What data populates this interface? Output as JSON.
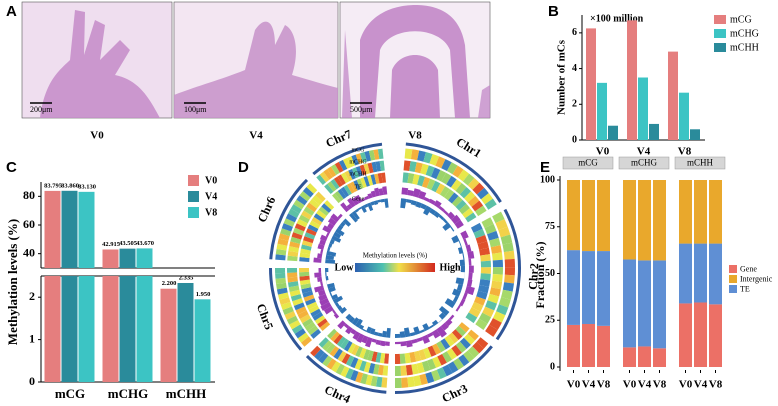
{
  "panel_labels": [
    "A",
    "B",
    "C",
    "D",
    "E"
  ],
  "micrographs": [
    {
      "label": "V0",
      "scale": "200μm"
    },
    {
      "label": "V4",
      "scale": "100μm"
    },
    {
      "label": "V8",
      "scale": "500μm"
    }
  ],
  "chart_data": [
    {
      "type": "bar",
      "annotation": "×100 million",
      "y_label": "Number of mCs",
      "categories": [
        "V0",
        "V4",
        "V8"
      ],
      "series": [
        {
          "name": "mCG",
          "color": "#e57e7e",
          "values": [
            6.25,
            6.7,
            4.95
          ]
        },
        {
          "name": "mCHG",
          "color": "#3cc4c4",
          "values": [
            3.2,
            3.5,
            2.65
          ]
        },
        {
          "name": "mCHH",
          "color": "#2a8b9b",
          "values": [
            0.8,
            0.9,
            0.6
          ]
        }
      ],
      "ylim": [
        0,
        7
      ],
      "yticks": [
        0,
        2,
        4,
        6
      ]
    },
    {
      "type": "broken_bar",
      "y_label": "Methylation levels (%)",
      "categories": [
        "mCG",
        "mCHG",
        "mCHH"
      ],
      "series": [
        {
          "name": "V0",
          "color": "#e57e7e",
          "values": [
            83.795,
            42.915,
            2.2
          ],
          "value_labels": [
            "83.795",
            "42.915",
            "2.200"
          ]
        },
        {
          "name": "V4",
          "color": "#2a8b9b",
          "values": [
            83.86,
            43.505,
            2.335
          ],
          "value_labels": [
            "83.860",
            "43.505",
            "2.335"
          ]
        },
        {
          "name": "V8",
          "color": "#3cc4c4",
          "values": [
            83.13,
            43.67,
            1.95
          ],
          "value_labels": [
            "83.130",
            "43.670",
            "1.950"
          ]
        }
      ],
      "ylim": [
        0,
        2.5
      ],
      "yticks": [
        0,
        1,
        2
      ],
      "upper_ylim": [
        30,
        90
      ],
      "upper_yticks": [
        40,
        60,
        80
      ]
    },
    {
      "type": "stacked_bar",
      "y_label": "Fraction (%)",
      "facets": [
        "mCG",
        "mCHG",
        "mCHH"
      ],
      "categories": [
        "V0",
        "V4",
        "V8",
        "V0",
        "V4",
        "V8",
        "V0",
        "V4",
        "V8"
      ],
      "series": [
        {
          "name": "Gene",
          "color": "#ec7066",
          "values": [
            22.5,
            23,
            22,
            10.5,
            11,
            10,
            34,
            34.5,
            33.5
          ]
        },
        {
          "name": "Intergenic",
          "color": "#e9a82c",
          "values": [
            37.5,
            38,
            38,
            42.5,
            43,
            43,
            34,
            34,
            34
          ]
        },
        {
          "name": "TE",
          "color": "#5f8fd4",
          "values": [
            40,
            39,
            40,
            47,
            46,
            47,
            32,
            31.5,
            32.5
          ]
        }
      ],
      "ylim": [
        0,
        100
      ],
      "yticks": [
        0,
        25,
        50,
        75,
        100
      ]
    }
  ],
  "circos": {
    "chromosomes": [
      "Chr1",
      "Chr2",
      "Chr3",
      "Chr4",
      "Chr5",
      "Chr6",
      "Chr7"
    ],
    "tracks": [
      "mCG",
      "mCHG",
      "mCHH",
      "TE",
      "Gene"
    ],
    "legend_title": "Methylation levels (%)",
    "legend_low": "Low",
    "legend_high": "High"
  }
}
